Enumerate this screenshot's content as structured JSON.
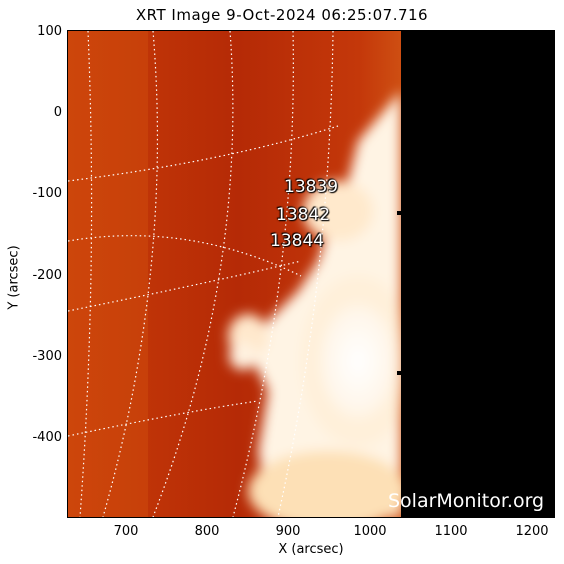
{
  "title": "XRT Image  9-Oct-2024 06:25:07.716",
  "xlabel": "X (arcsec)",
  "ylabel": "Y (arcsec)",
  "x_ticks": [
    "700",
    "800",
    "900",
    "1000",
    "1100",
    "1200"
  ],
  "y_ticks": [
    "100",
    "0",
    "-100",
    "-200",
    "-300",
    "-400"
  ],
  "active_regions": [
    {
      "label": "13839",
      "x": 924,
      "y": -92
    },
    {
      "label": "13842",
      "x": 920,
      "y": -125
    },
    {
      "label": "13844",
      "x": 905,
      "y": -157
    }
  ],
  "watermark": "SolarMonitor.org",
  "map_data": {
    "instrument": "XRT",
    "xlim": [
      630,
      1225
    ],
    "ylim": [
      -495,
      105
    ],
    "limb_edge_x": 1035,
    "colors": {
      "disk_dark": "#b52a06",
      "disk_mid": "#d8540f",
      "limb": "#f4a040",
      "saturated": "#ffffff",
      "off_field": "#000000"
    }
  }
}
